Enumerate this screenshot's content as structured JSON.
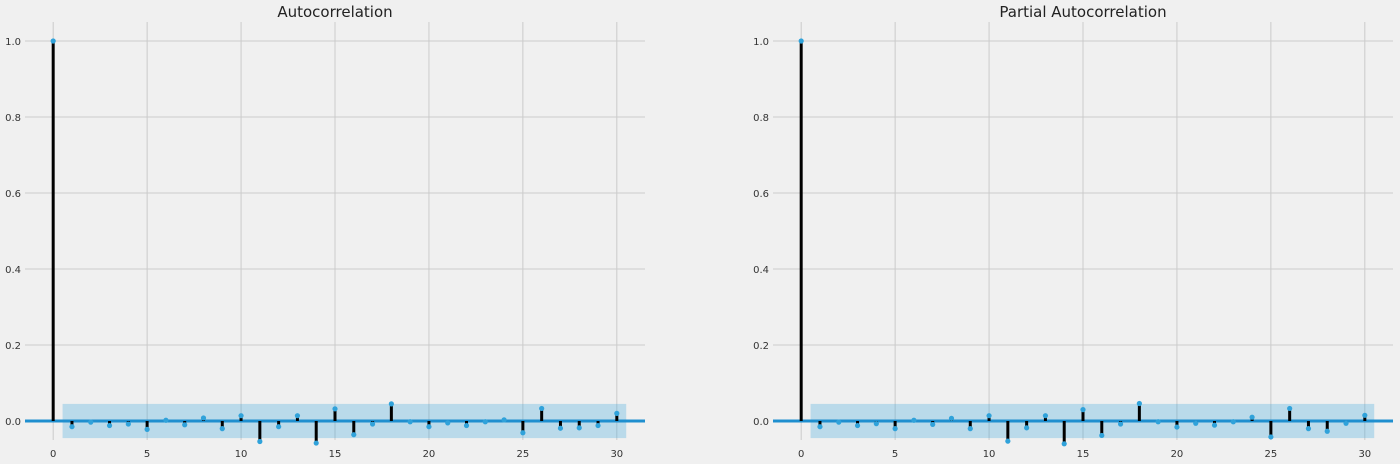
{
  "chart_data": [
    {
      "type": "stem",
      "title": "Autocorrelation",
      "xlabel": "",
      "ylabel": "",
      "xlim": [
        -1.5,
        31.5
      ],
      "ylim": [
        -0.05,
        1.05
      ],
      "xticks": [
        0,
        5,
        10,
        15,
        20,
        25,
        30
      ],
      "yticks": [
        0.0,
        0.2,
        0.4,
        0.6,
        0.8,
        1.0
      ],
      "ytick_labels": [
        "0.0",
        "0.2",
        "0.4",
        "0.6",
        "0.8",
        "1.0"
      ],
      "grid": true,
      "confidence_band": {
        "lag_start": 0.5,
        "lag_end": 30.5,
        "lower": -0.045,
        "upper": 0.045
      },
      "x": [
        0,
        1,
        2,
        3,
        4,
        5,
        6,
        7,
        8,
        9,
        10,
        11,
        12,
        13,
        14,
        15,
        16,
        17,
        18,
        19,
        20,
        21,
        22,
        23,
        24,
        25,
        26,
        27,
        28,
        29,
        30
      ],
      "values": [
        1.0,
        -0.015,
        -0.003,
        -0.012,
        -0.008,
        -0.022,
        0.002,
        -0.01,
        0.008,
        -0.02,
        0.014,
        -0.054,
        -0.015,
        0.014,
        -0.058,
        0.032,
        -0.036,
        -0.008,
        0.045,
        -0.002,
        -0.015,
        -0.005,
        -0.012,
        -0.002,
        0.003,
        -0.031,
        0.033,
        -0.019,
        -0.018,
        -0.012,
        0.02
      ]
    },
    {
      "type": "stem",
      "title": "Partial Autocorrelation",
      "xlabel": "",
      "ylabel": "",
      "xlim": [
        -1.5,
        31.5
      ],
      "ylim": [
        -0.05,
        1.05
      ],
      "xticks": [
        0,
        5,
        10,
        15,
        20,
        25,
        30
      ],
      "yticks": [
        0.0,
        0.2,
        0.4,
        0.6,
        0.8,
        1.0
      ],
      "ytick_labels": [
        "0.0",
        "0.2",
        "0.4",
        "0.6",
        "0.8",
        "1.0"
      ],
      "grid": true,
      "confidence_band": {
        "lag_start": 0.5,
        "lag_end": 30.5,
        "lower": -0.045,
        "upper": 0.045
      },
      "x": [
        0,
        1,
        2,
        3,
        4,
        5,
        6,
        7,
        8,
        9,
        10,
        11,
        12,
        13,
        14,
        15,
        16,
        17,
        18,
        19,
        20,
        21,
        22,
        23,
        24,
        25,
        26,
        27,
        28,
        29,
        30
      ],
      "values": [
        1.0,
        -0.015,
        -0.003,
        -0.012,
        -0.007,
        -0.02,
        0.002,
        -0.009,
        0.007,
        -0.02,
        0.014,
        -0.053,
        -0.018,
        0.014,
        -0.06,
        0.03,
        -0.038,
        -0.008,
        0.046,
        -0.002,
        -0.016,
        -0.006,
        -0.011,
        -0.002,
        0.01,
        -0.042,
        0.033,
        -0.02,
        -0.027,
        -0.006,
        0.015
      ]
    }
  ],
  "colors": {
    "background": "#f0f0f0",
    "grid": "#cbcbcb",
    "stem": "#000000",
    "marker": "#30a2da",
    "zero_line": "#1f8fcf",
    "band_fill": "#30a2da"
  }
}
